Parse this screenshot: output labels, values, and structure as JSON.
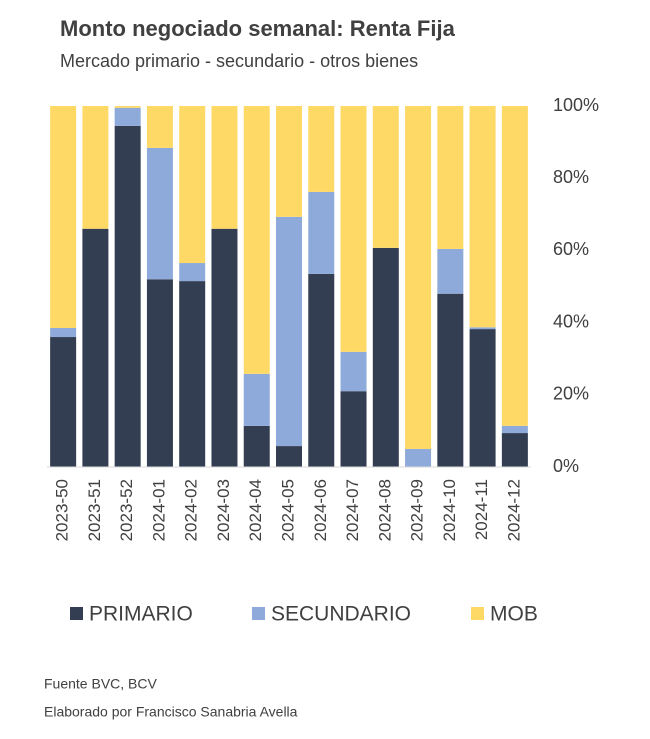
{
  "chart_data": {
    "type": "stacked_bar_100",
    "title": "Monto negociado semanal: Renta Fija",
    "subtitle": "Mercado  primario - secundario - otros bienes",
    "categories": [
      "2023-50",
      "2023-51",
      "2023-52",
      "2024-01",
      "2024-02",
      "2024-03",
      "2024-04",
      "2024-05",
      "2024-06",
      "2024-07",
      "2024-08",
      "2024-09",
      "2024-10",
      "2024-11",
      "2024-12"
    ],
    "series": [
      {
        "name": "PRIMARIO",
        "color": "#343e52",
        "values": [
          36,
          66,
          94.5,
          52,
          51.5,
          66,
          11.4,
          5.8,
          53.5,
          21,
          60.7,
          0,
          48,
          38.2,
          9.4
        ]
      },
      {
        "name": "SECUNDARIO",
        "color": "#8eaadb",
        "values": [
          2.5,
          0,
          5,
          36.4,
          5,
          0,
          14.4,
          63.5,
          22.7,
          10.9,
          0,
          5,
          12.4,
          0.5,
          2
        ]
      },
      {
        "name": "MOB",
        "color": "#ffd966",
        "values": [
          61.5,
          34,
          0.5,
          11.6,
          43.5,
          34,
          74.2,
          30.7,
          23.8,
          68.1,
          39.3,
          95,
          39.6,
          61.3,
          88.6
        ]
      }
    ],
    "ylim": [
      0,
      100
    ],
    "yticks": [
      {
        "value": 0,
        "label": "0%"
      },
      {
        "value": 20,
        "label": "20%"
      },
      {
        "value": 40,
        "label": "40%"
      },
      {
        "value": 60,
        "label": "60%"
      },
      {
        "value": 80,
        "label": "80%"
      },
      {
        "value": 100,
        "label": "100%"
      }
    ],
    "legend": "bottom",
    "notes": [
      "Fuente BVC, BCV",
      "Elaborado por Francisco Sanabria Avella"
    ]
  }
}
